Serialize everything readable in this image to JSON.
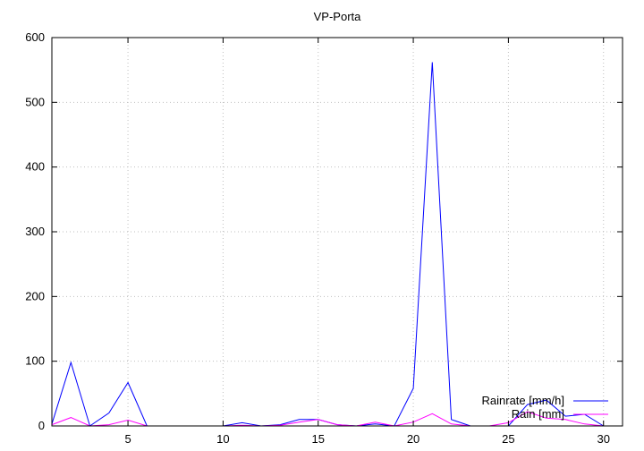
{
  "chart_data": {
    "type": "line",
    "title": "VP-Porta",
    "xlim": [
      1,
      31
    ],
    "ylim": [
      0,
      600
    ],
    "xticks": [
      5,
      10,
      15,
      20,
      25,
      30
    ],
    "yticks": [
      0,
      100,
      200,
      300,
      400,
      500,
      600
    ],
    "grid": true,
    "legend_position": "bottom-right",
    "series": [
      {
        "name": "Rainrate [mm/h]",
        "color": "#0000ff",
        "x": [
          1,
          2,
          3,
          4,
          5,
          6,
          7,
          8,
          9,
          10,
          11,
          12,
          13,
          14,
          15,
          16,
          17,
          18,
          19,
          20,
          21,
          22,
          23,
          24,
          25,
          26,
          27,
          28,
          29,
          30
        ],
        "values": [
          3,
          98,
          0,
          20,
          67,
          0,
          0,
          0,
          0,
          0,
          5,
          0,
          2,
          10,
          10,
          2,
          0,
          3,
          0,
          58,
          562,
          10,
          0,
          0,
          0,
          33,
          40,
          15,
          18,
          0
        ]
      },
      {
        "name": "Rain [mm]",
        "color": "#ff00ff",
        "x": [
          1,
          2,
          3,
          4,
          5,
          6,
          7,
          8,
          9,
          10,
          11,
          12,
          13,
          14,
          15,
          16,
          17,
          18,
          19,
          20,
          21,
          22,
          23,
          24,
          25,
          26,
          27,
          28,
          29,
          30
        ],
        "values": [
          2,
          13,
          0,
          2,
          9,
          0,
          0,
          0,
          0,
          0,
          1,
          0,
          1,
          6,
          10,
          2,
          0,
          6,
          0,
          6,
          19,
          3,
          0,
          0,
          5,
          22,
          12,
          10,
          3,
          0
        ]
      }
    ]
  }
}
